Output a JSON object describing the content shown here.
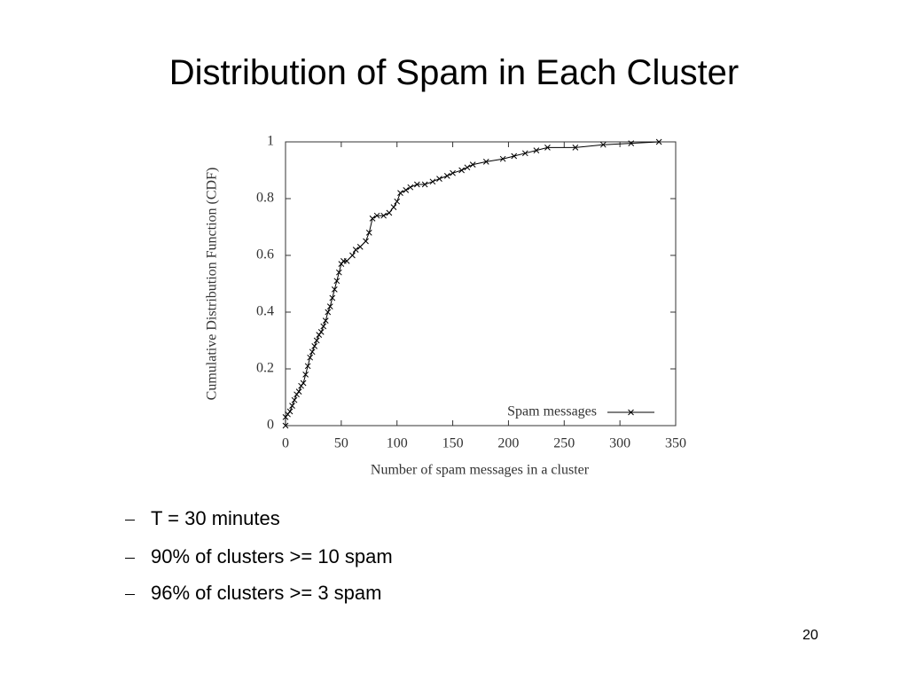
{
  "slide": {
    "title": "Distribution of Spam in Each Cluster",
    "bullets": [
      "T = 30 minutes",
      "90% of clusters >= 10 spam",
      "96% of clusters >= 3 spam"
    ],
    "page_number": "20"
  },
  "chart_data": {
    "type": "line",
    "x_label": "Number of spam messages in a cluster",
    "y_label": "Cumulative Distribution Function (CDF)",
    "x": [
      0,
      0,
      2,
      4,
      6,
      8,
      10,
      12,
      14,
      16,
      18,
      20,
      22,
      24,
      26,
      28,
      30,
      32,
      34,
      36,
      38,
      40,
      42,
      44,
      46,
      48,
      50,
      52,
      55,
      60,
      63,
      67,
      72,
      75,
      78,
      82,
      88,
      93,
      97,
      100,
      103,
      108,
      112,
      118,
      125,
      132,
      138,
      145,
      150,
      158,
      163,
      168,
      180,
      195,
      205,
      215,
      225,
      235,
      260,
      285,
      310,
      335
    ],
    "series": [
      {
        "name": "Spam messages",
        "color": "#000000",
        "values": [
          0,
          0.03,
          0.04,
          0.05,
          0.07,
          0.09,
          0.11,
          0.12,
          0.14,
          0.15,
          0.18,
          0.21,
          0.24,
          0.26,
          0.28,
          0.3,
          0.32,
          0.33,
          0.35,
          0.37,
          0.4,
          0.42,
          0.45,
          0.48,
          0.51,
          0.54,
          0.57,
          0.58,
          0.58,
          0.6,
          0.62,
          0.63,
          0.65,
          0.68,
          0.73,
          0.74,
          0.74,
          0.75,
          0.77,
          0.79,
          0.82,
          0.83,
          0.84,
          0.85,
          0.85,
          0.86,
          0.87,
          0.88,
          0.89,
          0.9,
          0.91,
          0.92,
          0.93,
          0.94,
          0.95,
          0.96,
          0.97,
          0.98,
          0.98,
          0.99,
          0.995,
          1
        ]
      }
    ],
    "xlim": [
      0,
      350
    ],
    "xticks": [
      0,
      50,
      100,
      150,
      200,
      250,
      300,
      350
    ],
    "ylim": [
      0,
      1
    ],
    "yticks": [
      0,
      0.2,
      0.4,
      0.6,
      0.8,
      1
    ],
    "legend": "lower right"
  }
}
